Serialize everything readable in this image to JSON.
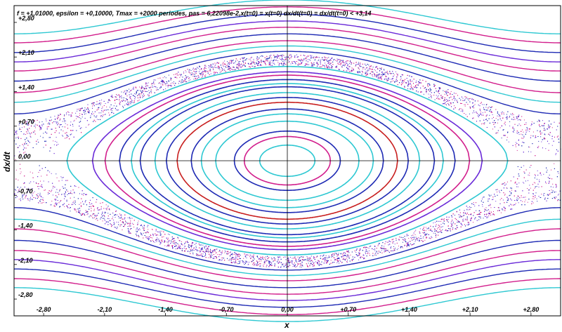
{
  "chart_data": {
    "type": "scatter",
    "title": "f = +1,01000, epsilon = +0,10000, Tmax = +2000 periodes, pas = 6,22098e-2,x(t=0) = x(t=0) dx/dt(t=0) = dx/dt(t=0) < +3,14",
    "xlabel": "x",
    "ylabel": "dx/dt",
    "xlim": [
      -3.14,
      3.14
    ],
    "ylim": [
      -3.14,
      3.14
    ],
    "x_ticks": [
      "-2,80",
      "-2,10",
      "-1,40",
      "-0,70",
      "0,00",
      "+0,70",
      "+1,40",
      "+2,10",
      "+2,80"
    ],
    "x_tick_values": [
      -2.8,
      -2.1,
      -1.4,
      -0.7,
      0.0,
      0.7,
      1.4,
      2.1,
      2.8
    ],
    "y_ticks": [
      "+2,80",
      "+2,10",
      "+1,40",
      "+0,70",
      "0,00",
      "-0,70",
      "-1,40",
      "-2,10",
      "-2,80"
    ],
    "y_tick_values": [
      2.8,
      2.1,
      1.4,
      0.7,
      0.0,
      -0.7,
      -1.4,
      -2.1,
      -2.8
    ],
    "grid": "axes at zero",
    "colors": [
      "#d21e8c",
      "#1e2ab4",
      "#2ec8d2",
      "#c81e1e",
      "#6a2ad8"
    ],
    "closed_orbits": [
      {
        "h": 0.05,
        "color": "#2ec8d2"
      },
      {
        "h": 0.12,
        "color": "#d21e8c"
      },
      {
        "h": 0.18,
        "color": "#1e2ab4"
      },
      {
        "h": 0.32,
        "color": "#2ec8d2"
      },
      {
        "h": 0.45,
        "color": "#2ec8d2"
      },
      {
        "h": 0.55,
        "color": "#1e2ab4"
      },
      {
        "h": 0.7,
        "color": "#c81e1e"
      },
      {
        "h": 0.82,
        "color": "#1e2ab4"
      },
      {
        "h": 0.95,
        "color": "#2ec8d2"
      },
      {
        "h": 1.12,
        "color": "#1e2ab4"
      },
      {
        "h": 1.22,
        "color": "#2ec8d2"
      },
      {
        "h": 1.35,
        "color": "#1e2ab4"
      },
      {
        "h": 1.5,
        "color": "#d21e8c"
      },
      {
        "h": 1.62,
        "color": "#6a2ad8"
      },
      {
        "h": 1.82,
        "color": "#2ec8d2"
      }
    ],
    "rotating_orbits": [
      {
        "h": 2.45,
        "color": "#1e2ab4"
      },
      {
        "h": 2.7,
        "color": "#2ec8d2"
      },
      {
        "h": 2.95,
        "color": "#d21e8c"
      },
      {
        "h": 3.3,
        "color": "#1e2ab4"
      },
      {
        "h": 3.65,
        "color": "#d21e8c"
      },
      {
        "h": 4.0,
        "color": "#6a2ad8"
      },
      {
        "h": 4.4,
        "color": "#1e2ab4"
      },
      {
        "h": 4.85,
        "color": "#d21e8c"
      },
      {
        "h": 5.3,
        "color": "#2ec8d2"
      }
    ],
    "chaotic_band": {
      "h_min": 1.88,
      "h_max": 2.32,
      "colors": [
        "#d21e8c",
        "#1e2ab4",
        "#6a2ad8"
      ]
    }
  }
}
